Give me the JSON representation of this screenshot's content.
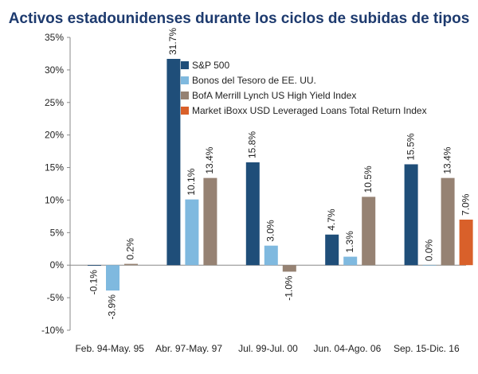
{
  "chart_data": {
    "type": "bar",
    "title": "Activos estadounidenses durante los ciclos de subidas de tipos",
    "categories": [
      "Feb. 94-May. 95",
      "Abr. 97-May. 97",
      "Jul. 99-Jul. 00",
      "Jun. 04-Ago. 06",
      "Sep. 15-Dic. 16"
    ],
    "series": [
      {
        "name": "S&P 500",
        "color": "#1f4e79",
        "values": [
          -0.1,
          31.7,
          15.8,
          4.7,
          15.5
        ],
        "labels": [
          "-0.1%",
          "31.7%",
          "15.8%",
          "4.7%",
          "15.5%"
        ]
      },
      {
        "name": "Bonos del Tesoro de EE. UU.",
        "color": "#7fb9df",
        "values": [
          -3.9,
          10.1,
          3.0,
          1.3,
          0.0
        ],
        "labels": [
          "-3.9%",
          "10.1%",
          "3.0%",
          "1.3%",
          "0.0%"
        ]
      },
      {
        "name": "BofA Merrill Lynch US High Yield Index",
        "color": "#968273",
        "values": [
          0.2,
          13.4,
          -1.0,
          10.5,
          13.4
        ],
        "labels": [
          "0.2%",
          "13.4%",
          "-1.0%",
          "10.5%",
          "13.4%"
        ]
      },
      {
        "name": "Market iBoxx USD Leveraged Loans Total Return Index",
        "color": "#d9602a",
        "values": [
          null,
          null,
          null,
          null,
          7.0
        ],
        "labels": [
          null,
          null,
          null,
          null,
          "7.0%"
        ]
      }
    ],
    "ylim": [
      -10,
      35
    ],
    "yticks": [
      -10,
      -5,
      0,
      5,
      10,
      15,
      20,
      25,
      30,
      35
    ],
    "ytick_labels": [
      "-10%",
      "-5%",
      "0%",
      "5%",
      "10%",
      "15%",
      "20%",
      "25%",
      "30%",
      "35%"
    ],
    "legend_position": "top-right",
    "grid": false,
    "xlabel": "",
    "ylabel": ""
  }
}
